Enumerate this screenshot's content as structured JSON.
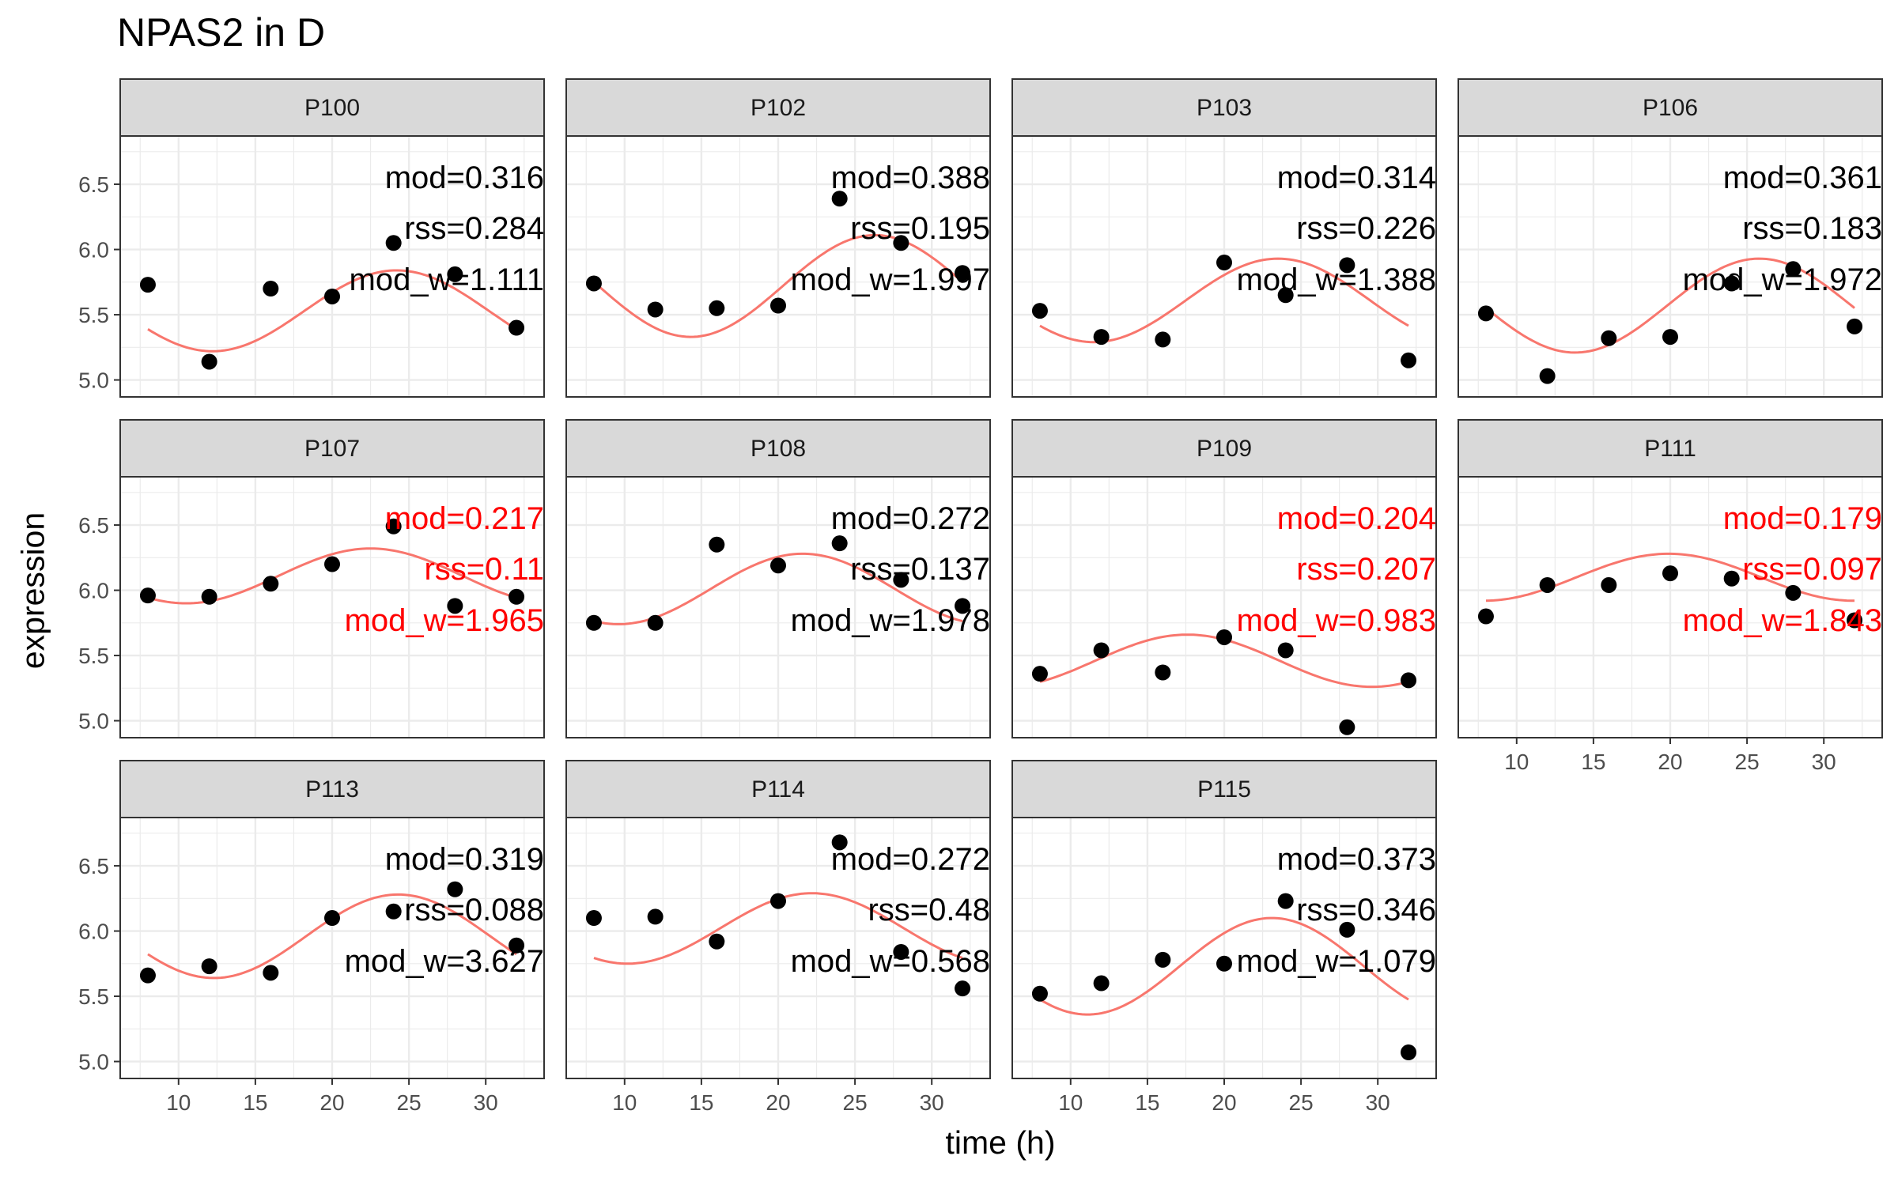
{
  "chart_data": {
    "type": "scatter",
    "title": "NPAS2 in D",
    "xlabel": "time (h)",
    "ylabel": "expression",
    "xlim": [
      6.2,
      33.8
    ],
    "ylim": [
      4.87,
      6.87
    ],
    "x_ticks": [
      10,
      15,
      20,
      25,
      30
    ],
    "y_ticks": [
      5.0,
      5.5,
      6.0,
      6.5
    ],
    "x_tick_labels": [
      "10",
      "15",
      "20",
      "25",
      "30"
    ],
    "y_tick_labels": [
      "5.0",
      "5.5",
      "6.0",
      "6.5"
    ],
    "grid": true,
    "colors": {
      "points": "#000000",
      "fit_line": "#F8766D",
      "highlight_text": "#FF0000",
      "strip_fill": "#D9D9D9",
      "grid": "#EBEBEB"
    },
    "panels": [
      {
        "name": "P100",
        "x": [
          8,
          12,
          16,
          20,
          24,
          28,
          32
        ],
        "y": [
          5.73,
          5.14,
          5.7,
          5.64,
          6.05,
          5.81,
          5.4
        ],
        "fit": {
          "mesor": 5.53,
          "amplitude": 0.31,
          "peak": 24.2,
          "period": 24
        },
        "stats": [
          "mod=0.316",
          "rss=0.284",
          "mod_w=1.111"
        ],
        "highlight": false
      },
      {
        "name": "P102",
        "x": [
          8,
          12,
          16,
          20,
          24,
          28,
          32
        ],
        "y": [
          5.74,
          5.54,
          5.55,
          5.57,
          6.39,
          6.05,
          5.82
        ],
        "fit": {
          "mesor": 5.72,
          "amplitude": 0.39,
          "peak": 26.3,
          "period": 24
        },
        "stats": [
          "mod=0.388",
          "rss=0.195",
          "mod_w=1.997"
        ],
        "highlight": false
      },
      {
        "name": "P103",
        "x": [
          8,
          12,
          16,
          20,
          24,
          28,
          32
        ],
        "y": [
          5.53,
          5.33,
          5.31,
          5.9,
          5.65,
          5.88,
          5.15
        ],
        "fit": {
          "mesor": 5.61,
          "amplitude": 0.32,
          "peak": 23.5,
          "period": 24
        },
        "stats": [
          "mod=0.314",
          "rss=0.226",
          "mod_w=1.388"
        ],
        "highlight": false
      },
      {
        "name": "P106",
        "x": [
          8,
          12,
          16,
          20,
          24,
          28,
          32
        ],
        "y": [
          5.51,
          5.03,
          5.32,
          5.33,
          5.74,
          5.85,
          5.41
        ],
        "fit": {
          "mesor": 5.57,
          "amplitude": 0.36,
          "peak": 25.8,
          "period": 24
        },
        "stats": [
          "mod=0.361",
          "rss=0.183",
          "mod_w=1.972"
        ],
        "highlight": false
      },
      {
        "name": "P107",
        "x": [
          8,
          12,
          16,
          20,
          24,
          28,
          32
        ],
        "y": [
          5.96,
          5.95,
          6.05,
          6.2,
          6.49,
          5.88,
          5.95
        ],
        "fit": {
          "mesor": 6.11,
          "amplitude": 0.21,
          "peak": 22.5,
          "period": 24
        },
        "stats": [
          "mod=0.217",
          "rss=0.11",
          "mod_w=1.965"
        ],
        "highlight": true
      },
      {
        "name": "P108",
        "x": [
          8,
          12,
          16,
          20,
          24,
          28,
          32
        ],
        "y": [
          5.75,
          5.75,
          6.35,
          6.19,
          6.36,
          6.08,
          5.88
        ],
        "fit": {
          "mesor": 6.01,
          "amplitude": 0.27,
          "peak": 21.6,
          "period": 24
        },
        "stats": [
          "mod=0.272",
          "rss=0.137",
          "mod_w=1.978"
        ],
        "highlight": false
      },
      {
        "name": "P109",
        "x": [
          8,
          12,
          16,
          20,
          24,
          28,
          32
        ],
        "y": [
          5.36,
          5.54,
          5.37,
          5.64,
          5.54,
          4.95,
          5.31
        ],
        "fit": {
          "mesor": 5.46,
          "amplitude": 0.2,
          "peak": 17.6,
          "period": 24
        },
        "stats": [
          "mod=0.204",
          "rss=0.207",
          "mod_w=0.983"
        ],
        "highlight": true
      },
      {
        "name": "P111",
        "x": [
          8,
          12,
          16,
          20,
          24,
          28,
          32
        ],
        "y": [
          5.8,
          6.04,
          6.04,
          6.13,
          6.09,
          5.98,
          5.77
        ],
        "fit": {
          "mesor": 6.1,
          "amplitude": 0.18,
          "peak": 19.9,
          "period": 24
        },
        "stats": [
          "mod=0.179",
          "rss=0.097",
          "mod_w=1.843"
        ],
        "highlight": true
      },
      {
        "name": "P113",
        "x": [
          8,
          12,
          16,
          20,
          24,
          28,
          32
        ],
        "y": [
          5.66,
          5.73,
          5.68,
          6.1,
          6.15,
          6.32,
          5.89
        ],
        "fit": {
          "mesor": 5.96,
          "amplitude": 0.32,
          "peak": 24.3,
          "period": 24
        },
        "stats": [
          "mod=0.319",
          "rss=0.088",
          "mod_w=3.627"
        ],
        "highlight": false
      },
      {
        "name": "P114",
        "x": [
          8,
          12,
          16,
          20,
          24,
          28,
          32
        ],
        "y": [
          6.1,
          6.11,
          5.92,
          6.23,
          6.68,
          5.84,
          5.56
        ],
        "fit": {
          "mesor": 6.02,
          "amplitude": 0.27,
          "peak": 22.2,
          "period": 24
        },
        "stats": [
          "mod=0.272",
          "rss=0.48",
          "mod_w=0.568"
        ],
        "highlight": false
      },
      {
        "name": "P115",
        "x": [
          8,
          12,
          16,
          20,
          24,
          28,
          32
        ],
        "y": [
          5.52,
          5.6,
          5.78,
          5.75,
          6.23,
          6.01,
          5.07
        ],
        "fit": {
          "mesor": 5.73,
          "amplitude": 0.37,
          "peak": 23.1,
          "period": 24
        },
        "stats": [
          "mod=0.373",
          "rss=0.346",
          "mod_w=1.079"
        ],
        "highlight": false
      }
    ]
  }
}
